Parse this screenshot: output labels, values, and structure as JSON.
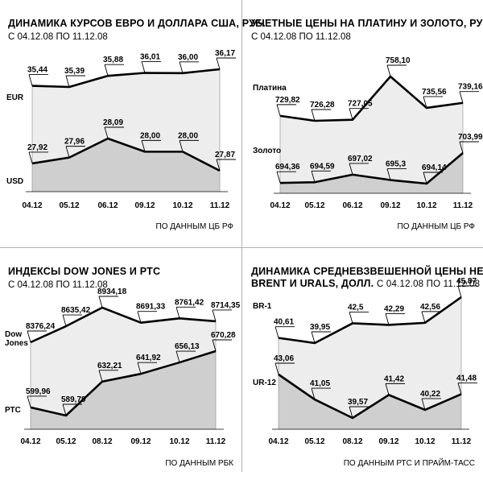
{
  "chart_data": [
    {
      "type": "area",
      "title": "ДИНАМИКА КУРСОВ ЕВРО И ДОЛЛАРА США, РУБ.",
      "subtitle": "С 04.12.08 ПО 11.12.08",
      "categories": [
        "04.12",
        "05.12",
        "06.12",
        "09.12",
        "10.12",
        "11.12"
      ],
      "series": [
        {
          "name": "EUR",
          "values": [
            35.44,
            35.39,
            35.88,
            36.01,
            36.0,
            36.17
          ],
          "labels": [
            "35,44",
            "35,39",
            "35,88",
            "36,01",
            "36,00",
            "36,17"
          ]
        },
        {
          "name": "USD",
          "values": [
            27.92,
            27.96,
            28.09,
            28.0,
            28.0,
            27.87
          ],
          "labels": [
            "27,92",
            "27,96",
            "28,09",
            "28,00",
            "28,00",
            "27,87"
          ]
        }
      ],
      "source": "ПО ДАННЫМ ЦБ РФ"
    },
    {
      "type": "area",
      "title": "УЧЕТНЫЕ ЦЕНЫ НА ПЛАТИНУ И ЗОЛОТО, РУБ.",
      "subtitle": "С 04.12.08 ПО 11.12.08",
      "categories": [
        "04.12",
        "05.12",
        "06.12",
        "09.12",
        "10.12",
        "11.12"
      ],
      "series": [
        {
          "name": "Платина",
          "values": [
            729.82,
            726.28,
            727.05,
            758.1,
            735.56,
            739.16
          ],
          "labels": [
            "729,82",
            "726,28",
            "727,05",
            "758,10",
            "735,56",
            "739,16"
          ]
        },
        {
          "name": "Золото",
          "values": [
            694.36,
            694.59,
            697.02,
            695.3,
            694.14,
            703.99
          ],
          "labels": [
            "694,36",
            "694,59",
            "697,02",
            "695,3",
            "694,14",
            "703,99"
          ]
        }
      ],
      "source": "ПО ДАННЫМ ЦБ РФ"
    },
    {
      "type": "area",
      "title": "ИНДЕКСЫ DOW JONES И РТС",
      "subtitle": "С 04.12.08 ПО 11.12.08",
      "categories": [
        "04.12",
        "05.12",
        "08.12",
        "09.12",
        "10.12",
        "11.12"
      ],
      "series": [
        {
          "name": "Dow Jones",
          "values": [
            8376.24,
            8635.42,
            8934.18,
            8691.33,
            8761.42,
            8714.35
          ],
          "labels": [
            "8376,24",
            "8635,42",
            "8934,18",
            "8691,33",
            "8761,42",
            "8714,35"
          ]
        },
        {
          "name": "РТС",
          "values": [
            599.96,
            589.79,
            632.21,
            641.92,
            656.13,
            670.28
          ],
          "labels": [
            "599,96",
            "589,79",
            "632,21",
            "641,92",
            "656,13",
            "670,28"
          ]
        }
      ],
      "source": "ПО ДАННЫМ РБК"
    },
    {
      "type": "area",
      "title": "ДИНАМИКА СРЕДНЕВЗВЕШЕННОЙ ЦЕНЫ НЕФТИ",
      "title_line2": "BRENT И URALS, ДОЛЛ.",
      "subtitle": "С 04.12.08 ПО 11.12.08",
      "categories": [
        "04.12",
        "05.12",
        "08.12",
        "09.12",
        "10.12",
        "11.12"
      ],
      "series": [
        {
          "name": "BR-1",
          "values": [
            40.61,
            39.95,
            42.5,
            42.29,
            42.56,
            45.87
          ],
          "labels": [
            "40,61",
            "39,95",
            "42,5",
            "42,29",
            "42,56",
            "45,87"
          ]
        },
        {
          "name": "UR-12",
          "values": [
            43.06,
            41.05,
            39.57,
            41.42,
            40.22,
            41.48
          ],
          "labels": [
            "43,06",
            "41,05",
            "39,57",
            "41,42",
            "40,22",
            "41,48"
          ]
        }
      ],
      "source": "ПО ДАННЫМ РТС И ПРАЙМ-ТАСС"
    }
  ]
}
